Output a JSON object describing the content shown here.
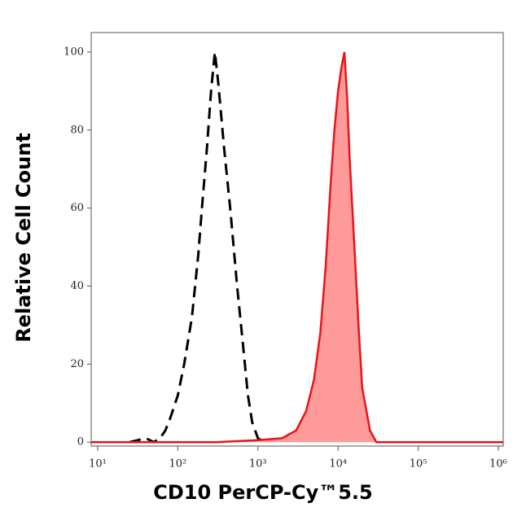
{
  "chart_data": {
    "type": "line",
    "xlabel": "CD10 PerCP-Cy™5.5",
    "ylabel": "Relative Cell Count",
    "xscale": "log",
    "xlim": [
      8.3,
      1150000
    ],
    "ylim": [
      -1,
      105
    ],
    "xticks": [
      {
        "value": 10,
        "label": "10¹"
      },
      {
        "value": 100,
        "label": "10²"
      },
      {
        "value": 1000,
        "label": "10³"
      },
      {
        "value": 10000,
        "label": "10⁴"
      },
      {
        "value": 100000,
        "label": "10⁵"
      },
      {
        "value": 1000000,
        "label": "10⁶"
      }
    ],
    "yticks": [
      0,
      20,
      40,
      60,
      80,
      100
    ],
    "series": [
      {
        "color": "#000000",
        "line_style": "dashed",
        "fill": "none",
        "x": [
          25,
          40,
          50,
          60,
          70,
          80,
          100,
          120,
          150,
          180,
          200,
          230,
          260,
          290,
          320,
          380,
          450,
          550,
          650,
          750,
          850,
          1000,
          1200
        ],
        "values": [
          0,
          1,
          0,
          1,
          3,
          6,
          12,
          20,
          32,
          48,
          60,
          75,
          90,
          100,
          92,
          75,
          60,
          40,
          25,
          12,
          5,
          1,
          0
        ]
      },
      {
        "color": "#e8141a",
        "line_style": "solid",
        "fill": "#ff9a9a",
        "x": [
          8.3,
          300,
          1000,
          2000,
          3000,
          4000,
          5000,
          6000,
          7000,
          8000,
          9000,
          10000,
          11000,
          12000,
          13000,
          14000,
          16000,
          18000,
          20000,
          25000,
          30000,
          1150000
        ],
        "values": [
          0,
          0,
          0.5,
          1,
          3,
          8,
          16,
          28,
          45,
          65,
          80,
          90,
          96,
          100,
          88,
          72,
          50,
          30,
          14,
          3,
          0,
          0
        ]
      }
    ]
  }
}
